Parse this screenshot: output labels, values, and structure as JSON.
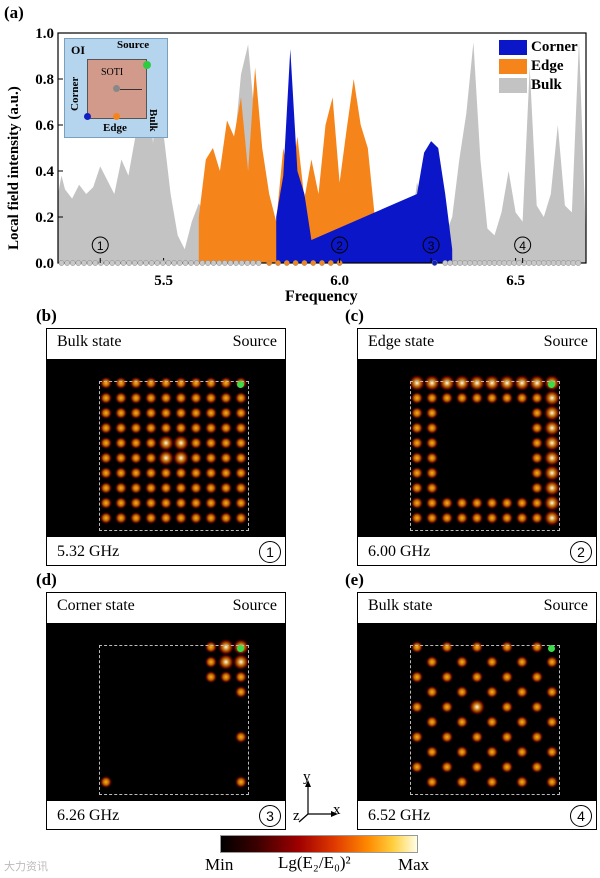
{
  "panel_a": {
    "label": "(a)",
    "ylabel": "Local field intensity (a.u.)",
    "xlabel": "Frequency",
    "legend": [
      {
        "name": "Corner",
        "color": "#0b16c8"
      },
      {
        "name": "Edge",
        "color": "#f5851b"
      },
      {
        "name": "Bulk",
        "color": "#c3c3c3"
      }
    ],
    "inset": {
      "oi": "OI",
      "soti": "SOTI",
      "source": "Source",
      "bulk": "Bulk",
      "corner": "Corner",
      "edge": "Edge"
    },
    "markers": [
      "1",
      "2",
      "3",
      "4"
    ]
  },
  "chart_data": {
    "type": "area",
    "xlabel": "Frequency",
    "ylabel": "Local field intensity (a.u.)",
    "xlim": [
      5.2,
      6.7
    ],
    "ylim": [
      0,
      1.0
    ],
    "xticks": [
      "5.5",
      "6.0",
      "6.5"
    ],
    "yticks": [
      "0.0",
      "0.2",
      "0.4",
      "0.6",
      "0.8",
      "1.0"
    ],
    "legend_position": "top-right",
    "series": [
      {
        "name": "Bulk",
        "color": "#c3c3c3",
        "x": [
          5.2,
          5.21,
          5.22,
          5.24,
          5.26,
          5.28,
          5.3,
          5.32,
          5.34,
          5.36,
          5.38,
          5.4,
          5.42,
          5.44,
          5.46,
          5.47,
          5.48,
          5.5,
          5.52,
          5.54,
          5.56,
          5.58,
          5.6,
          5.62,
          5.64,
          5.66,
          5.68,
          5.7,
          5.72,
          5.74,
          5.75,
          5.76,
          5.78,
          5.8,
          5.82,
          5.84,
          5.86,
          5.88,
          5.9,
          5.92,
          5.94,
          5.96,
          5.98,
          6.0,
          6.02,
          6.04,
          6.06,
          6.08,
          6.1,
          6.12,
          6.14,
          6.16,
          6.18,
          6.2,
          6.22,
          6.24,
          6.26,
          6.28,
          6.3,
          6.32,
          6.34,
          6.36,
          6.38,
          6.4,
          6.42,
          6.44,
          6.46,
          6.48,
          6.5,
          6.52,
          6.54,
          6.56,
          6.58,
          6.6,
          6.62,
          6.64,
          6.66,
          6.68,
          6.7
        ],
        "y": [
          0.3,
          0.38,
          0.32,
          0.28,
          0.34,
          0.3,
          0.33,
          0.42,
          0.36,
          0.3,
          0.45,
          0.38,
          0.55,
          0.68,
          0.72,
          0.52,
          0.7,
          0.56,
          0.3,
          0.12,
          0.06,
          0.18,
          0.26,
          0.2,
          0.3,
          0.25,
          0.55,
          0.5,
          0.82,
          0.95,
          0.78,
          0.62,
          0.4,
          0.18,
          0.08,
          0.04,
          0.06,
          0.03,
          0.02,
          0.02,
          0.03,
          0.02,
          0.02,
          0.03,
          0.02,
          0.02,
          0.03,
          0.02,
          0.02,
          0.02,
          0.02,
          0.02,
          0.05,
          0.12,
          0.35,
          0.25,
          0.1,
          0.08,
          0.12,
          0.2,
          0.45,
          0.65,
          0.96,
          0.45,
          0.15,
          0.12,
          0.22,
          0.4,
          0.22,
          0.18,
          0.85,
          0.25,
          0.2,
          0.3,
          0.6,
          0.25,
          0.22,
          0.97,
          0.1
        ]
      },
      {
        "name": "Edge",
        "color": "#f5851b",
        "x": [
          5.6,
          5.62,
          5.64,
          5.66,
          5.68,
          5.7,
          5.72,
          5.74,
          5.76,
          5.78,
          5.8,
          5.82,
          5.84,
          5.86,
          5.88,
          5.9,
          5.92,
          5.94,
          5.96,
          5.98,
          6.0,
          6.02,
          6.04,
          6.06,
          6.08,
          6.1,
          6.12
        ],
        "y": [
          0.2,
          0.45,
          0.5,
          0.4,
          0.62,
          0.55,
          0.72,
          0.4,
          0.85,
          0.5,
          0.3,
          0.18,
          0.5,
          0.32,
          0.55,
          0.28,
          0.45,
          0.3,
          0.6,
          0.72,
          0.35,
          0.58,
          0.8,
          0.6,
          0.5,
          0.2,
          0.04
        ]
      },
      {
        "name": "Corner",
        "color": "#0b16c8",
        "x": [
          5.82,
          5.84,
          5.86,
          5.88,
          5.9,
          5.92,
          6.22,
          6.24,
          6.26,
          6.28,
          6.3,
          6.32
        ],
        "y": [
          0.2,
          0.38,
          0.93,
          0.4,
          0.3,
          0.1,
          0.3,
          0.48,
          0.53,
          0.5,
          0.3,
          0.06
        ]
      }
    ]
  },
  "panels": [
    {
      "letter": "(b)",
      "state": "Bulk state",
      "source": "Source",
      "freq": "5.32 GHz",
      "num": "1"
    },
    {
      "letter": "(c)",
      "state": "Edge state",
      "source": "Source",
      "freq": "6.00 GHz",
      "num": "2"
    },
    {
      "letter": "(d)",
      "state": "Corner state",
      "source": "Source",
      "freq": "6.26 GHz",
      "num": "3"
    },
    {
      "letter": "(e)",
      "state": "Bulk state",
      "source": "Source",
      "freq": "6.52 GHz",
      "num": "4"
    }
  ],
  "colorbar": {
    "min": "Min",
    "label": "Lg(E₂/E₀)²",
    "max": "Max"
  },
  "axes_glyph": {
    "y": "y",
    "x": "x",
    "z": "z"
  },
  "watermark": "大力资讯"
}
